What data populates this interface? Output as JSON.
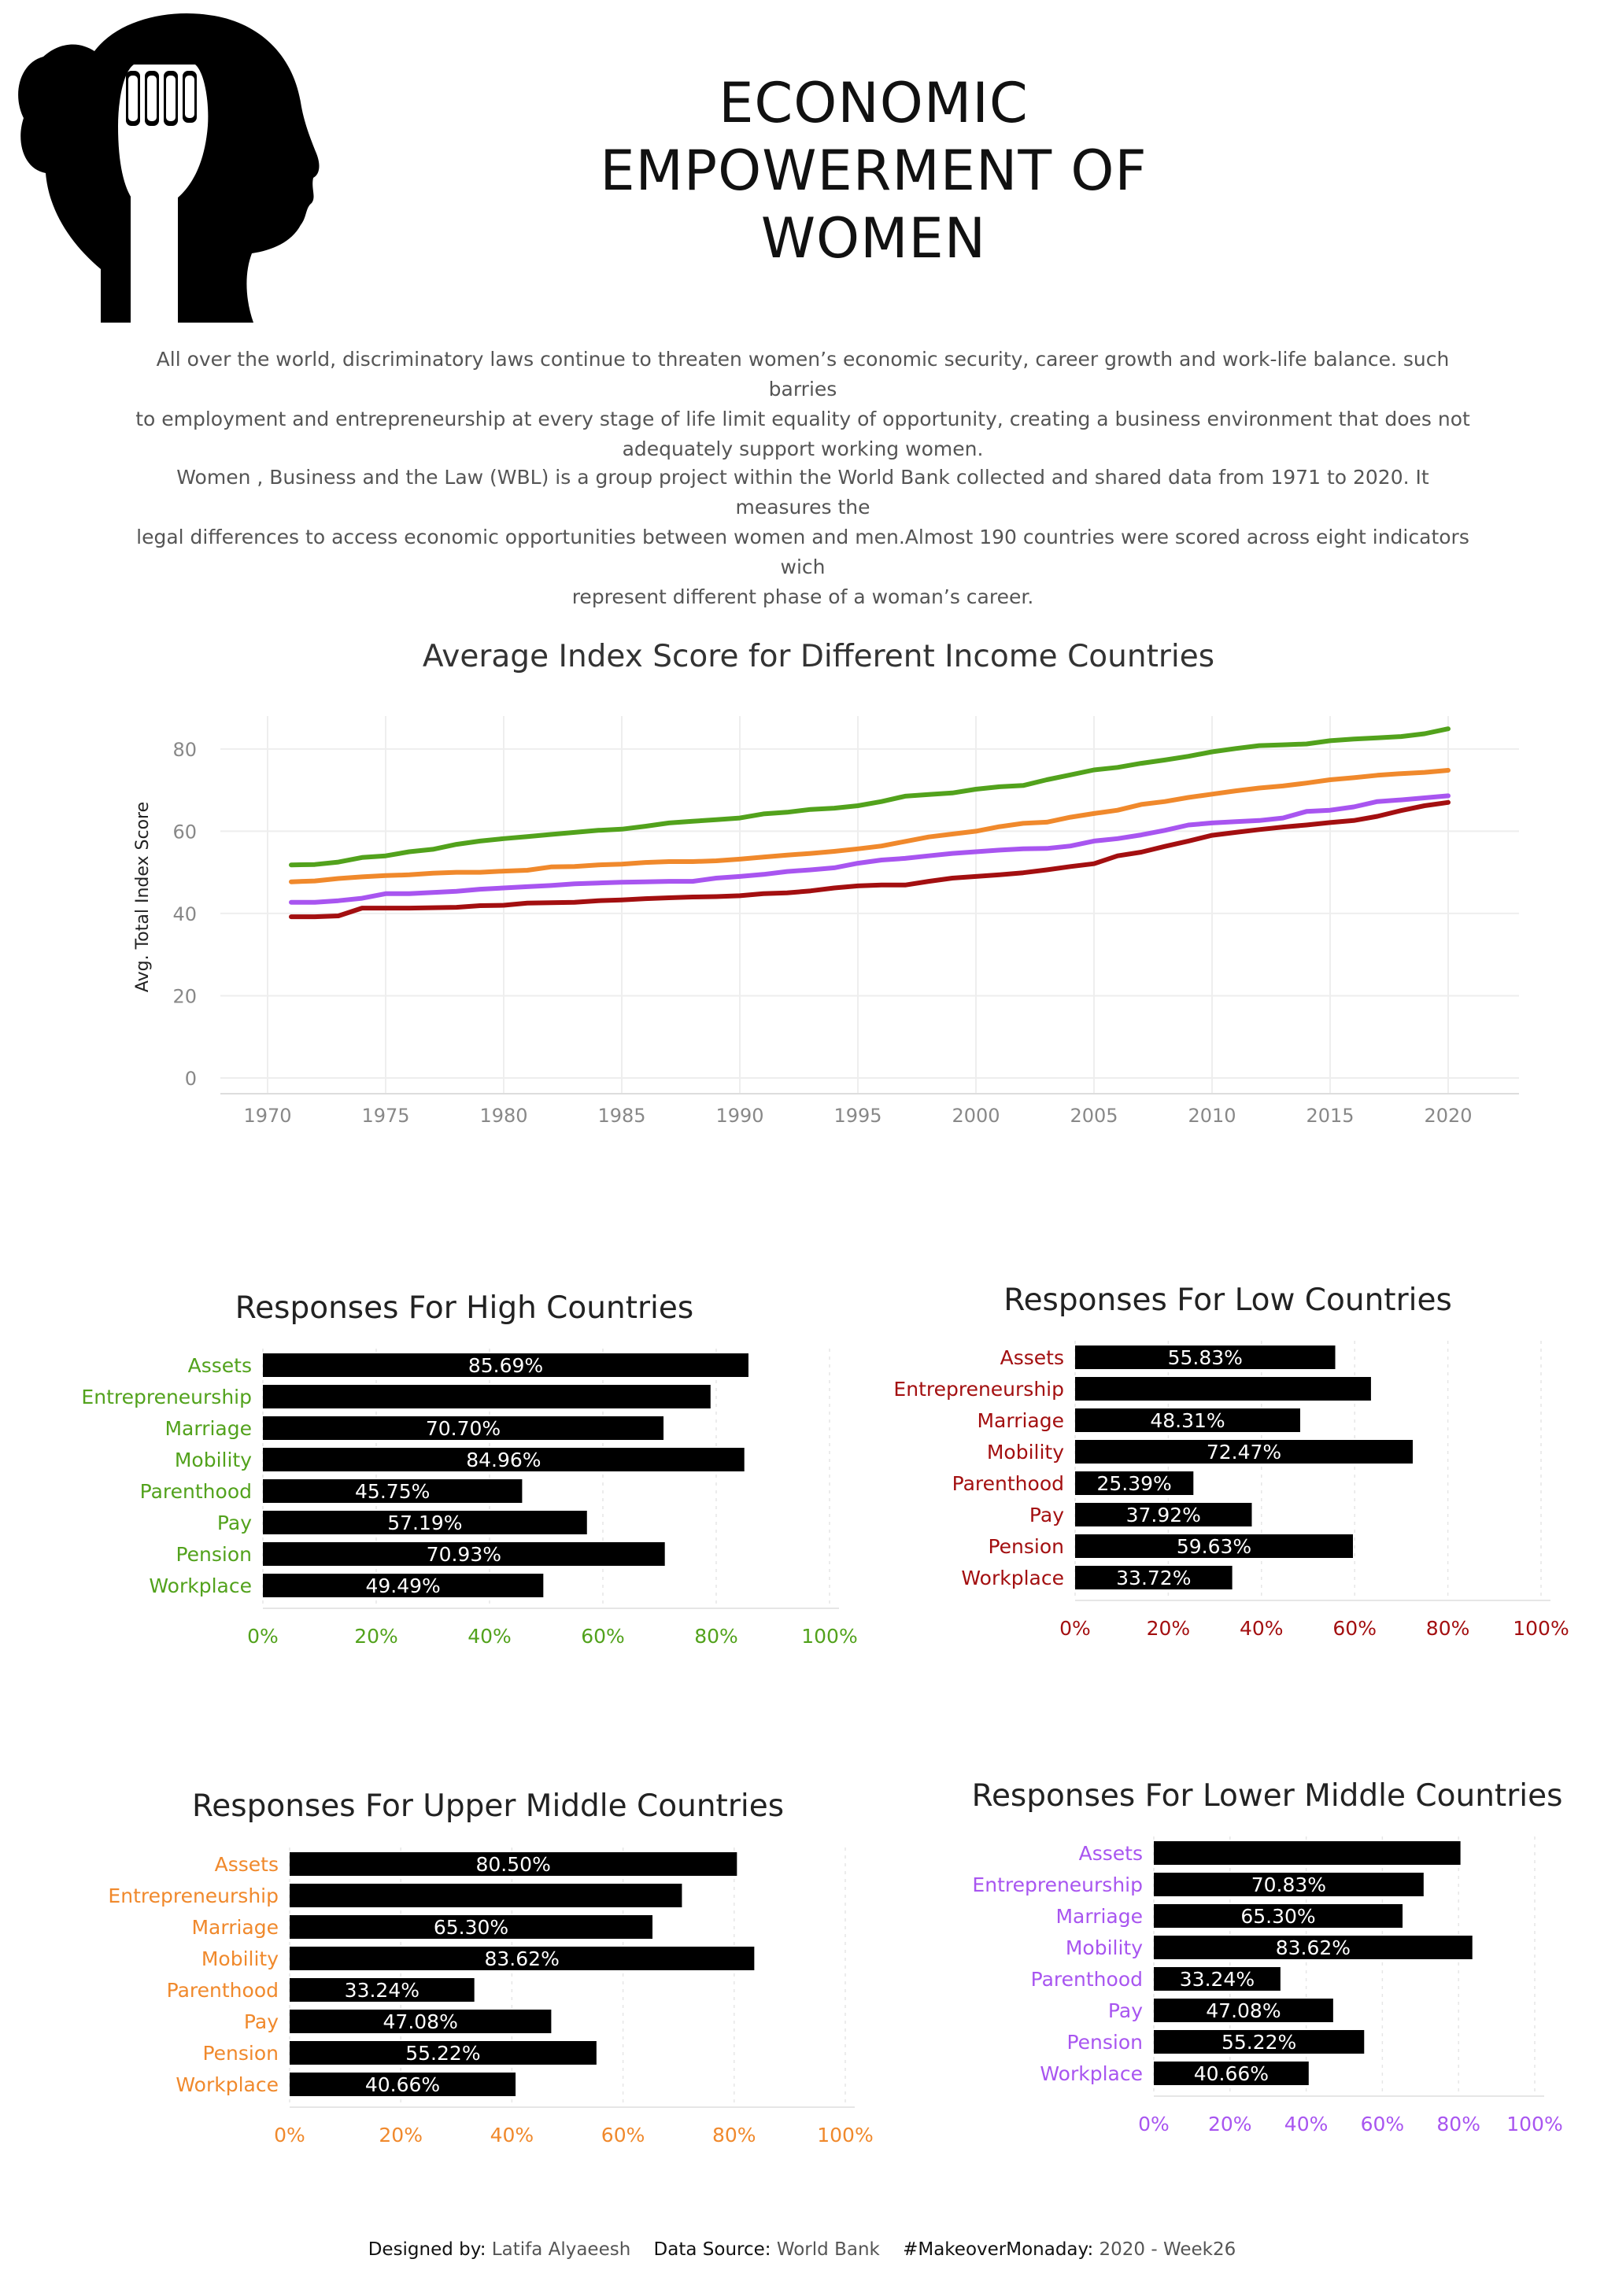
{
  "title": "ECONOMIC EMPOWERMENT OF WOMEN",
  "title_lines": [
    "ECONOMIC",
    "EMPOWERMENT OF",
    "WOMEN"
  ],
  "intro": {
    "p1_lines": [
      "All over the world, discriminatory laws continue to threaten women’s economic security, career growth and work-life balance. such barries",
      "to employment and entrepreneurship at every stage of life limit equality of opportunity, creating a business environment that does not",
      "adequately support working women."
    ],
    "p2_lines": [
      "Women , Business and the Law (WBL) is a group project within the World Bank collected and shared data from 1971 to 2020. It measures the",
      "legal differences to access economic opportunities between women and men.Almost 190 countries were scored across eight indicators wich",
      "represent different phase of a woman’s career."
    ]
  },
  "colors": {
    "high": "#52a21c",
    "upper_middle": "#f0892c",
    "lower_middle": "#a855f0",
    "low": "#a30f10",
    "bar": "#000000",
    "grid": "#eeeeee",
    "axis_text": "#888888"
  },
  "logo": {
    "icon": "raised-fist-head-silhouette"
  },
  "chart_data": [
    {
      "type": "line",
      "title": "Average Index Score for Different Income Countries",
      "xlabel": "",
      "ylabel": "Avg. Total Index Score",
      "xlim": [
        1968,
        2023
      ],
      "ylim": [
        0,
        88
      ],
      "xticks": [
        1970,
        1975,
        1980,
        1985,
        1990,
        1995,
        2000,
        2005,
        2010,
        2015,
        2020
      ],
      "yticks": [
        0,
        20,
        40,
        60,
        80
      ],
      "grid": true,
      "x": [
        1971,
        1972,
        1973,
        1974,
        1975,
        1976,
        1977,
        1978,
        1979,
        1980,
        1981,
        1982,
        1983,
        1984,
        1985,
        1986,
        1987,
        1988,
        1989,
        1990,
        1991,
        1992,
        1993,
        1994,
        1995,
        1996,
        1997,
        1998,
        1999,
        2000,
        2001,
        2002,
        2003,
        2004,
        2005,
        2006,
        2007,
        2008,
        2009,
        2010,
        2011,
        2012,
        2013,
        2014,
        2015,
        2016,
        2017,
        2018,
        2019,
        2020
      ],
      "series": [
        {
          "key": "high",
          "values": [
            51.8,
            51.9,
            52.5,
            53.6,
            54.0,
            55.0,
            55.6,
            56.8,
            57.6,
            58.2,
            58.7,
            59.2,
            59.7,
            60.2,
            60.5,
            61.2,
            62.0,
            62.4,
            62.8,
            63.2,
            64.2,
            64.6,
            65.3,
            65.6,
            66.2,
            67.2,
            68.5,
            68.9,
            69.3,
            70.2,
            70.8,
            71.1,
            72.5,
            73.7,
            74.9,
            75.5,
            76.5,
            77.3,
            78.2,
            79.3,
            80.1,
            80.8,
            81.0,
            81.2,
            82.0,
            82.4,
            82.7,
            83.0,
            83.7,
            84.9
          ]
        },
        {
          "key": "upper_middle",
          "values": [
            47.7,
            47.9,
            48.5,
            48.9,
            49.2,
            49.4,
            49.8,
            50.0,
            50.0,
            50.3,
            50.5,
            51.3,
            51.4,
            51.8,
            52.0,
            52.4,
            52.6,
            52.6,
            52.8,
            53.2,
            53.7,
            54.2,
            54.6,
            55.1,
            55.7,
            56.4,
            57.5,
            58.6,
            59.3,
            60.0,
            61.1,
            61.9,
            62.2,
            63.4,
            64.3,
            65.1,
            66.5,
            67.2,
            68.2,
            69.0,
            69.8,
            70.5,
            71.0,
            71.7,
            72.5,
            73.0,
            73.6,
            74.0,
            74.3,
            74.8
          ]
        },
        {
          "key": "lower_middle",
          "values": [
            42.7,
            42.7,
            43.1,
            43.7,
            44.8,
            44.8,
            45.1,
            45.4,
            45.9,
            46.2,
            46.5,
            46.8,
            47.2,
            47.4,
            47.6,
            47.7,
            47.8,
            47.8,
            48.6,
            49.0,
            49.5,
            50.2,
            50.6,
            51.1,
            52.2,
            53.0,
            53.4,
            54.0,
            54.6,
            55.0,
            55.4,
            55.7,
            55.8,
            56.4,
            57.6,
            58.2,
            59.1,
            60.2,
            61.5,
            62.0,
            62.3,
            62.6,
            63.2,
            64.8,
            65.1,
            65.9,
            67.2,
            67.6,
            68.1,
            68.6
          ]
        },
        {
          "key": "low",
          "values": [
            39.2,
            39.2,
            39.4,
            41.3,
            41.3,
            41.3,
            41.4,
            41.5,
            41.9,
            42.0,
            42.5,
            42.6,
            42.7,
            43.1,
            43.3,
            43.6,
            43.8,
            44.0,
            44.1,
            44.3,
            44.8,
            45.0,
            45.5,
            46.2,
            46.7,
            46.9,
            46.9,
            47.8,
            48.6,
            49.0,
            49.4,
            49.9,
            50.6,
            51.4,
            52.1,
            54.0,
            54.9,
            56.3,
            57.6,
            59.0,
            59.7,
            60.4,
            61.0,
            61.5,
            62.1,
            62.6,
            63.6,
            65.0,
            66.2,
            67.0
          ]
        }
      ]
    },
    {
      "type": "bar",
      "orientation": "horizontal",
      "key": "high",
      "title": "Responses For High Countries",
      "categories": [
        "Assets",
        "Entrepreneurship",
        "Marriage",
        "Mobility",
        "Parenthood",
        "Pay",
        "Pension",
        "Workplace"
      ],
      "values": [
        85.69,
        79.0,
        70.7,
        84.96,
        45.75,
        57.19,
        70.93,
        49.49
      ],
      "value_labels": [
        "85.69%",
        "",
        "70.70%",
        "84.96%",
        "45.75%",
        "57.19%",
        "70.93%",
        "49.49%"
      ],
      "xlim": [
        0,
        100
      ],
      "xticks": [
        "0%",
        "20%",
        "40%",
        "60%",
        "80%",
        "100%"
      ]
    },
    {
      "type": "bar",
      "orientation": "horizontal",
      "key": "low",
      "title": "Responses For Low Countries",
      "categories": [
        "Assets",
        "Entrepreneurship",
        "Marriage",
        "Mobility",
        "Parenthood",
        "Pay",
        "Pension",
        "Workplace"
      ],
      "values": [
        55.83,
        63.5,
        48.31,
        72.47,
        25.39,
        37.92,
        59.63,
        33.72
      ],
      "value_labels": [
        "55.83%",
        "",
        "48.31%",
        "72.47%",
        "25.39%",
        "37.92%",
        "59.63%",
        "33.72%"
      ],
      "xlim": [
        0,
        100
      ],
      "xticks": [
        "0%",
        "20%",
        "40%",
        "60%",
        "80%",
        "100%"
      ]
    },
    {
      "type": "bar",
      "orientation": "horizontal",
      "key": "upper_middle",
      "title": "Responses For Upper Middle Countries",
      "categories": [
        "Assets",
        "Entrepreneurship",
        "Marriage",
        "Mobility",
        "Parenthood",
        "Pay",
        "Pension",
        "Workplace"
      ],
      "values": [
        80.5,
        70.6,
        65.3,
        83.62,
        33.24,
        47.08,
        55.22,
        40.66
      ],
      "value_labels": [
        "80.50%",
        "",
        "65.30%",
        "83.62%",
        "33.24%",
        "47.08%",
        "55.22%",
        "40.66%"
      ],
      "xlim": [
        0,
        100
      ],
      "xticks": [
        "0%",
        "20%",
        "40%",
        "60%",
        "80%",
        "100%"
      ]
    },
    {
      "type": "bar",
      "orientation": "horizontal",
      "key": "lower_middle",
      "title": "Responses For Lower Middle Countries",
      "categories": [
        "Assets",
        "Entrepreneurship",
        "Marriage",
        "Mobility",
        "Parenthood",
        "Pay",
        "Pension",
        "Workplace"
      ],
      "values": [
        80.5,
        70.83,
        65.3,
        83.62,
        33.24,
        47.08,
        55.22,
        40.66
      ],
      "value_labels": [
        "",
        "70.83%",
        "65.30%",
        "83.62%",
        "33.24%",
        "47.08%",
        "55.22%",
        "40.66%"
      ],
      "xlim": [
        0,
        100
      ],
      "xticks": [
        "0%",
        "20%",
        "40%",
        "60%",
        "80%",
        "100%"
      ]
    }
  ],
  "footer": {
    "designed_label": "Designed by:",
    "designed_value": "Latifa Alyaeesh",
    "source_label": "Data Source:",
    "source_value": "World Bank",
    "tag_label": "#MakeoverMonaday:",
    "tag_value": "2020 - Week26"
  }
}
